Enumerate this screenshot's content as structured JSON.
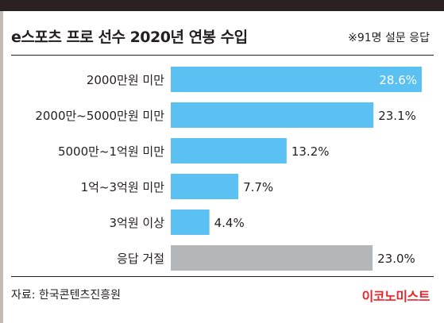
{
  "chart_data": {
    "type": "bar",
    "orientation": "horizontal",
    "title": "e스포츠 프로 선수 2020년 연봉 수입",
    "note": "※91명 설문 응답",
    "categories": [
      "2000만원 미만",
      "2000만~5000만원 미만",
      "5000만~1억원 미만",
      "1억~3억원 미만",
      "3억원 이상",
      "응답 거절"
    ],
    "values": [
      28.6,
      23.1,
      13.2,
      7.7,
      4.4,
      23.0
    ],
    "value_labels": [
      "28.6%",
      "23.1%",
      "13.2%",
      "7.7%",
      "4.4%",
      "23.0%"
    ],
    "unit": "%",
    "xlim": [
      0,
      28.6
    ],
    "colors": [
      "#5bc0f2",
      "#5bc0f2",
      "#5bc0f2",
      "#5bc0f2",
      "#5bc0f2",
      "#b4b7b9"
    ],
    "grid": false
  },
  "footer": {
    "source": "자료: 한국콘텐츠진흥원",
    "brand": "이코노미스트"
  }
}
